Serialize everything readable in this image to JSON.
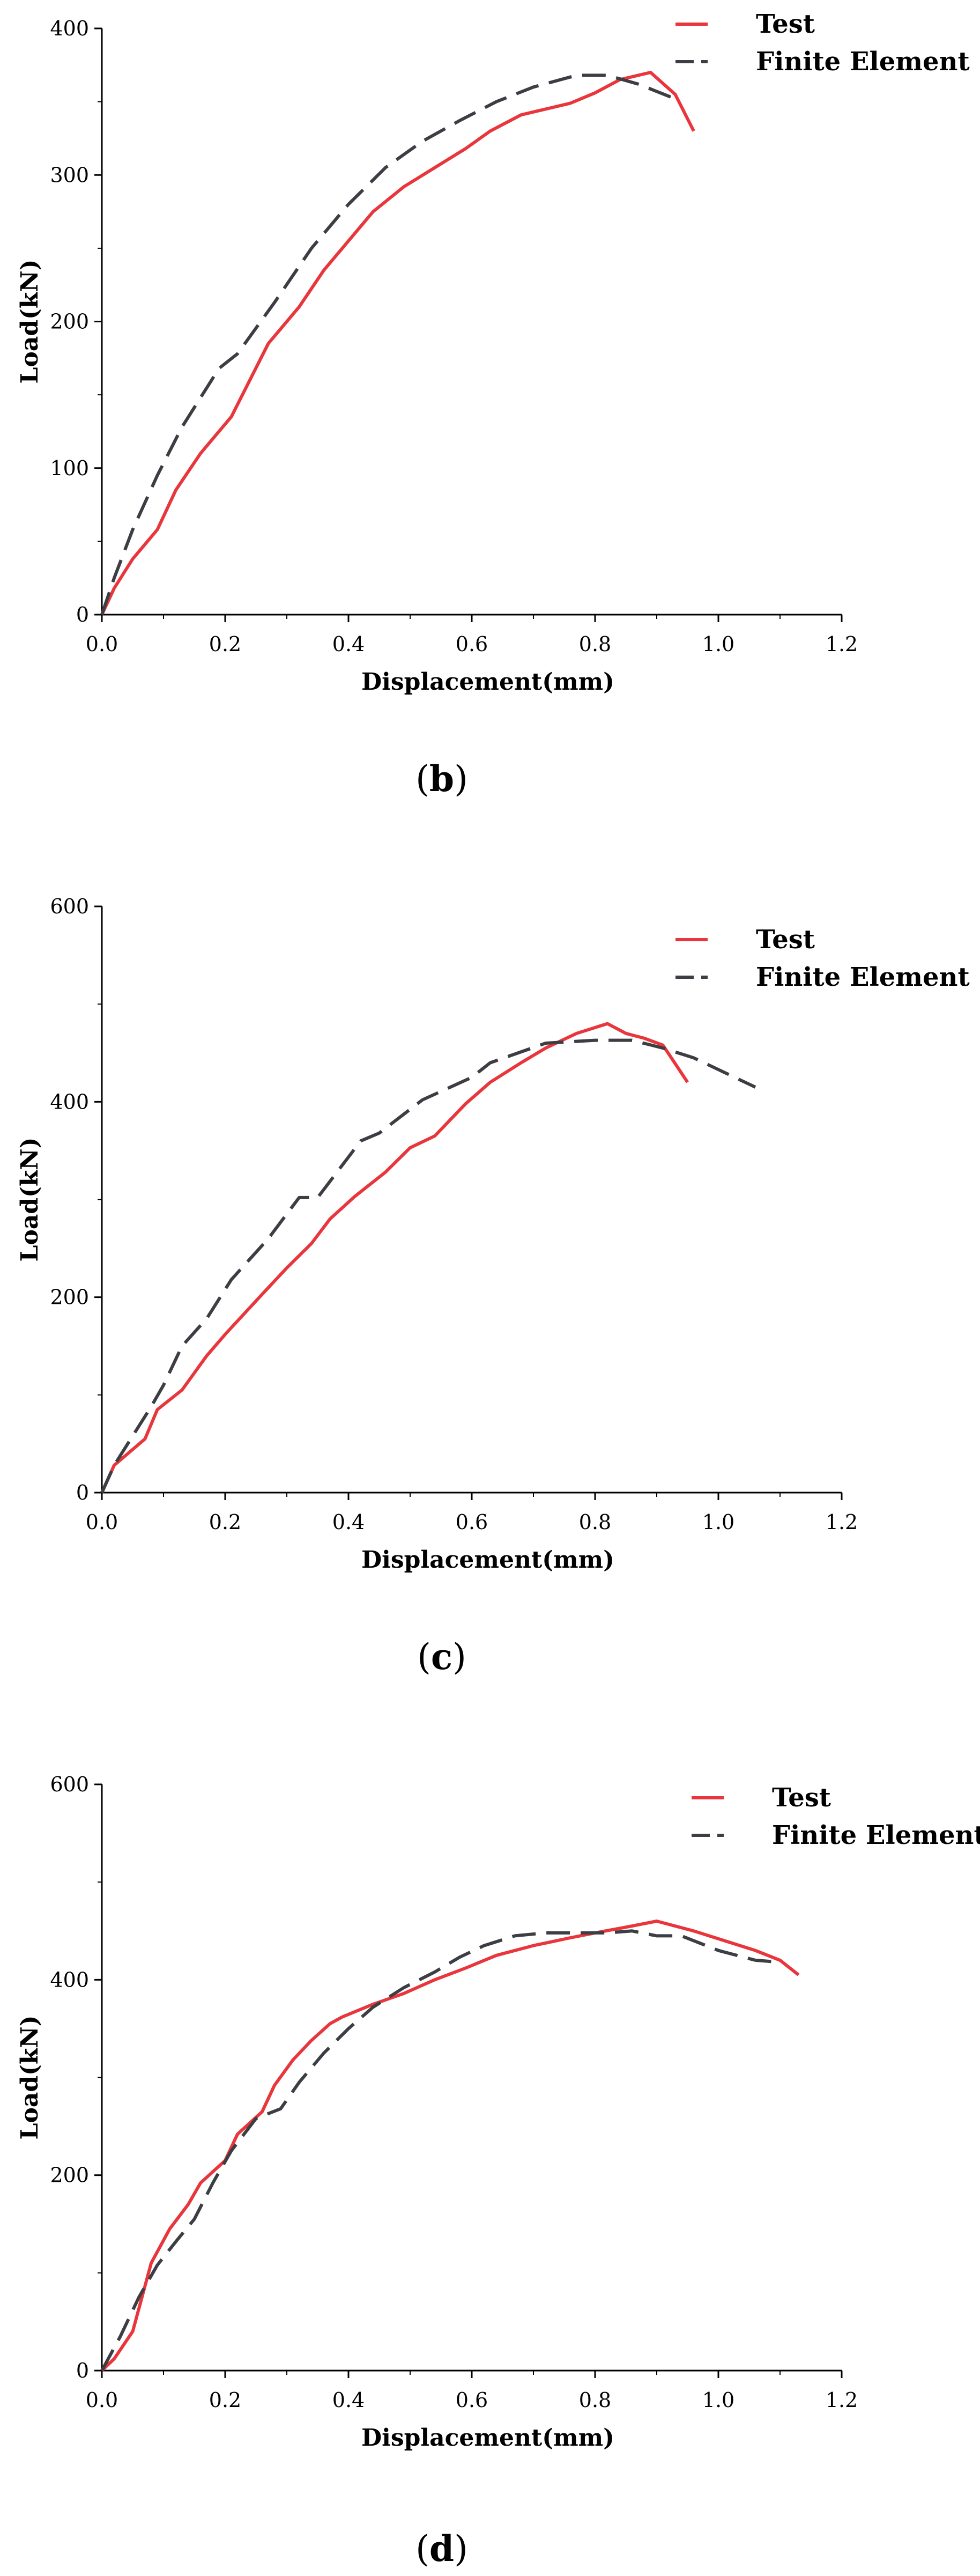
{
  "colors": {
    "test": "#e8363c",
    "finite_element": "#3c3e44",
    "axis": "#000000"
  },
  "chart_data": [
    {
      "type": "line",
      "panel_label": "b",
      "xlabel": "Displacement(mm)",
      "ylabel": "Load(kN)",
      "xlim": [
        0,
        1.2
      ],
      "ylim": [
        0,
        400
      ],
      "xticks": [
        "0.0",
        "0.2",
        "0.4",
        "0.6",
        "0.8",
        "1.0",
        "1.2"
      ],
      "yticks": [
        "0",
        "100",
        "200",
        "300",
        "400"
      ],
      "legend": {
        "position": "top-right",
        "entries": [
          "Test",
          "Finite Element"
        ]
      },
      "series": [
        {
          "name": "Test",
          "style": "solid",
          "x": [
            0,
            0.02,
            0.05,
            0.09,
            0.12,
            0.16,
            0.21,
            0.27,
            0.32,
            0.36,
            0.4,
            0.44,
            0.49,
            0.54,
            0.59,
            0.63,
            0.68,
            0.76,
            0.8,
            0.84,
            0.89,
            0.93,
            0.96
          ],
          "y": [
            0,
            18,
            38,
            58,
            85,
            110,
            135,
            185,
            210,
            235,
            255,
            275,
            292,
            305,
            318,
            330,
            341,
            349,
            356,
            365,
            370,
            355,
            330
          ]
        },
        {
          "name": "Finite Element",
          "style": "dashed",
          "x": [
            0,
            0.02,
            0.05,
            0.09,
            0.13,
            0.19,
            0.22,
            0.28,
            0.34,
            0.4,
            0.46,
            0.52,
            0.58,
            0.64,
            0.7,
            0.77,
            0.82,
            0.87,
            0.93
          ],
          "y": [
            0,
            25,
            58,
            95,
            128,
            168,
            178,
            213,
            250,
            280,
            305,
            323,
            337,
            350,
            360,
            368,
            368,
            362,
            352
          ]
        }
      ]
    },
    {
      "type": "line",
      "panel_label": "c",
      "xlabel": "Displacement(mm)",
      "ylabel": "Load(kN)",
      "xlim": [
        0,
        1.2
      ],
      "ylim": [
        0,
        600
      ],
      "xticks": [
        "0.0",
        "0.2",
        "0.4",
        "0.6",
        "0.8",
        "1.0",
        "1.2"
      ],
      "yticks": [
        "0",
        "200",
        "400",
        "600"
      ],
      "legend": {
        "position": "top-right",
        "entries": [
          "Test",
          "Finite Element"
        ]
      },
      "series": [
        {
          "name": "Test",
          "style": "solid",
          "x": [
            0,
            0.02,
            0.07,
            0.09,
            0.13,
            0.17,
            0.2,
            0.26,
            0.3,
            0.34,
            0.37,
            0.41,
            0.46,
            0.5,
            0.54,
            0.59,
            0.63,
            0.68,
            0.72,
            0.77,
            0.82,
            0.85,
            0.88,
            0.91,
            0.95
          ],
          "y": [
            0,
            28,
            55,
            85,
            105,
            140,
            162,
            203,
            230,
            255,
            280,
            303,
            328,
            353,
            365,
            398,
            420,
            440,
            455,
            470,
            480,
            470,
            465,
            458,
            420
          ]
        },
        {
          "name": "Finite Element",
          "style": "dashed",
          "x": [
            0,
            0.02,
            0.05,
            0.08,
            0.1,
            0.13,
            0.17,
            0.21,
            0.27,
            0.32,
            0.35,
            0.42,
            0.45,
            0.52,
            0.6,
            0.63,
            0.72,
            0.8,
            0.86,
            0.91,
            0.96,
            1.01,
            1.06
          ],
          "y": [
            0,
            28,
            58,
            88,
            110,
            150,
            178,
            218,
            260,
            302,
            302,
            360,
            368,
            402,
            425,
            440,
            460,
            463,
            463,
            455,
            445,
            430,
            415
          ]
        }
      ]
    },
    {
      "type": "line",
      "panel_label": "d",
      "xlabel": "Displacement(mm)",
      "ylabel": "Load(kN)",
      "xlim": [
        0,
        1.2
      ],
      "ylim": [
        0,
        600
      ],
      "xticks": [
        "0.0",
        "0.2",
        "0.4",
        "0.6",
        "0.8",
        "1.0",
        "1.2"
      ],
      "yticks": [
        "0",
        "200",
        "400",
        "600"
      ],
      "legend": {
        "position": "top-right",
        "entries": [
          "Test",
          "Finite Element"
        ]
      },
      "series": [
        {
          "name": "Test",
          "style": "solid",
          "x": [
            0,
            0.02,
            0.05,
            0.08,
            0.11,
            0.14,
            0.16,
            0.2,
            0.22,
            0.26,
            0.28,
            0.31,
            0.34,
            0.37,
            0.39,
            0.44,
            0.49,
            0.54,
            0.59,
            0.64,
            0.7,
            0.76,
            0.8,
            0.86,
            0.9,
            0.96,
            1.01,
            1.06,
            1.1,
            1.13
          ],
          "y": [
            0,
            12,
            40,
            110,
            145,
            170,
            192,
            215,
            242,
            265,
            292,
            318,
            338,
            355,
            362,
            375,
            386,
            400,
            412,
            425,
            435,
            443,
            448,
            455,
            460,
            450,
            440,
            430,
            420,
            405
          ]
        },
        {
          "name": "Finite Element",
          "style": "dashed",
          "x": [
            0,
            0.03,
            0.06,
            0.09,
            0.12,
            0.15,
            0.18,
            0.21,
            0.25,
            0.29,
            0.32,
            0.36,
            0.4,
            0.44,
            0.49,
            0.54,
            0.58,
            0.62,
            0.67,
            0.72,
            0.77,
            0.82,
            0.86,
            0.9,
            0.94,
            1.0,
            1.06,
            1.1
          ],
          "y": [
            0,
            35,
            75,
            108,
            132,
            155,
            192,
            225,
            258,
            268,
            295,
            325,
            350,
            372,
            392,
            408,
            423,
            435,
            445,
            448,
            448,
            448,
            450,
            445,
            445,
            430,
            420,
            418
          ]
        }
      ]
    }
  ]
}
